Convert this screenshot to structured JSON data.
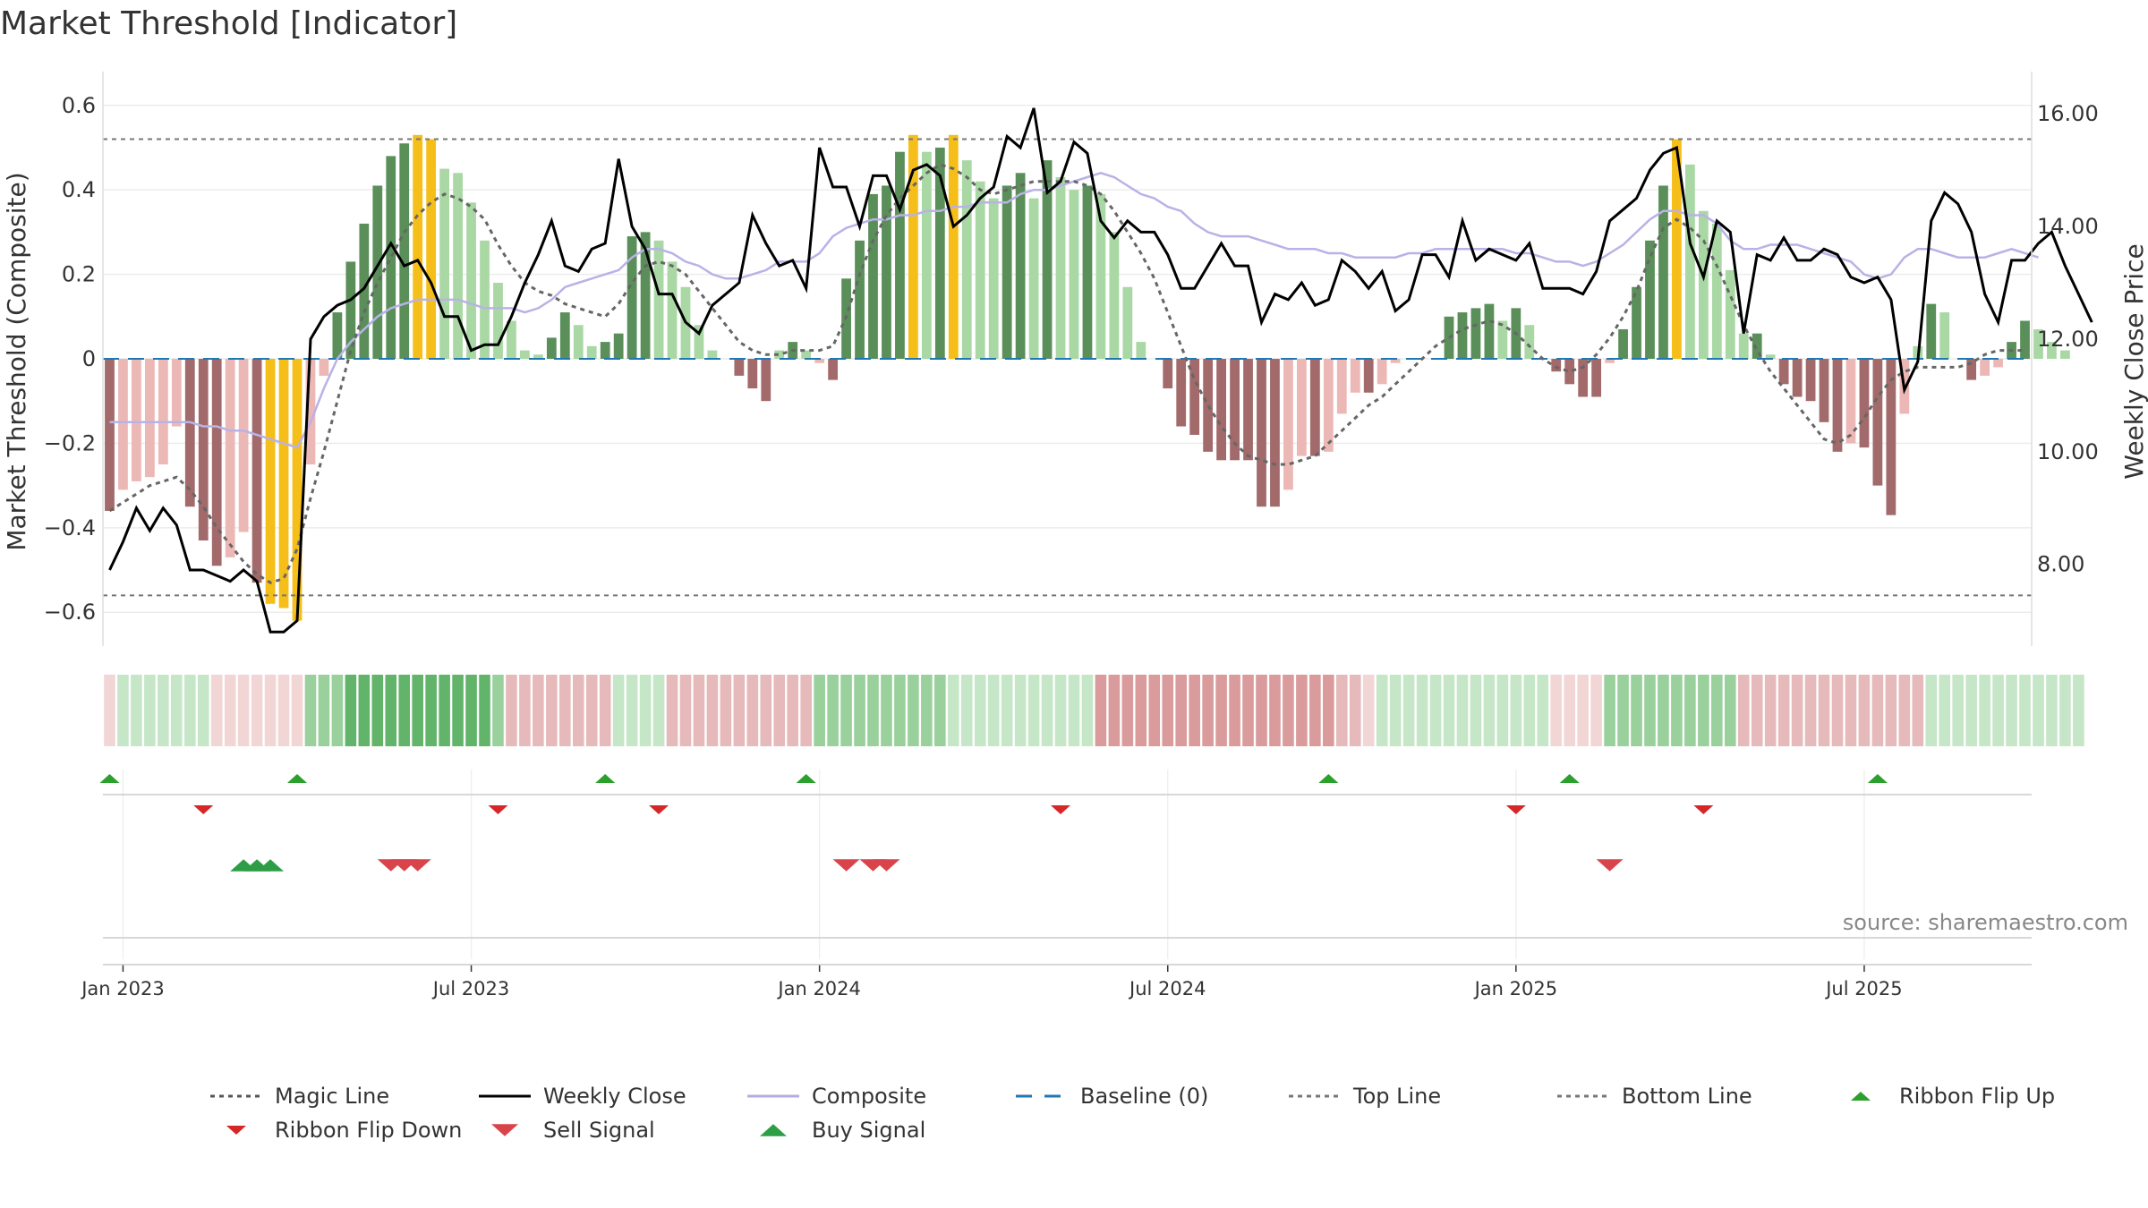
{
  "chart_data": {
    "type": "bar",
    "title": "Market Threshold [Indicator]",
    "ylabel_left": "Market Threshold (Composite)",
    "ylabel_right": "Weekly Close Price",
    "ylim_left": [
      -0.68,
      0.68
    ],
    "ylim_right": [
      6.55,
      16.75
    ],
    "yticks_left": [
      {
        "v": 0.6,
        "label": "0.6"
      },
      {
        "v": 0.4,
        "label": "0.4"
      },
      {
        "v": 0.2,
        "label": "0.2"
      },
      {
        "v": 0,
        "label": "0"
      },
      {
        "v": -0.2,
        "label": "−0.2"
      },
      {
        "v": -0.4,
        "label": "−0.4"
      },
      {
        "v": -0.6,
        "label": "−0.6"
      }
    ],
    "yticks_right": [
      {
        "v": 16,
        "label": "16.00"
      },
      {
        "v": 14,
        "label": "14.00"
      },
      {
        "v": 12,
        "label": "12.00"
      },
      {
        "v": 10,
        "label": "10.00"
      },
      {
        "v": 8,
        "label": "8.00"
      }
    ],
    "xticks": [
      {
        "week": 1,
        "label": "Jan 2023"
      },
      {
        "week": 27,
        "label": "Jul 2023"
      },
      {
        "week": 53,
        "label": "Jan 2024"
      },
      {
        "week": 79,
        "label": "Jul 2024"
      },
      {
        "week": 105,
        "label": "Jan 2025"
      },
      {
        "week": 131,
        "label": "Jul 2025"
      }
    ],
    "x_range_weeks": [
      -0.5,
      143.5
    ],
    "top_line": 0.52,
    "bottom_line": -0.56,
    "baseline": 0,
    "bars": [
      -0.36,
      -0.31,
      -0.29,
      -0.28,
      -0.25,
      -0.16,
      -0.35,
      -0.43,
      -0.49,
      -0.47,
      -0.41,
      -0.53,
      -0.58,
      -0.59,
      -0.62,
      -0.25,
      -0.04,
      0.11,
      0.23,
      0.32,
      0.41,
      0.48,
      0.51,
      0.53,
      0.52,
      0.45,
      0.44,
      0.37,
      0.28,
      0.18,
      0.09,
      0.02,
      0.01,
      0.05,
      0.11,
      0.08,
      0.03,
      0.04,
      0.06,
      0.29,
      0.3,
      0.28,
      0.23,
      0.17,
      0.08,
      0.02,
      0.0,
      -0.04,
      -0.07,
      -0.1,
      0.02,
      0.04,
      0.02,
      -0.01,
      -0.05,
      0.19,
      0.28,
      0.39,
      0.41,
      0.49,
      0.53,
      0.49,
      0.5,
      0.53,
      0.47,
      0.42,
      0.38,
      0.41,
      0.44,
      0.38,
      0.47,
      0.43,
      0.4,
      0.41,
      0.39,
      0.3,
      0.17,
      0.04,
      0.0,
      -0.07,
      -0.16,
      -0.18,
      -0.22,
      -0.24,
      -0.24,
      -0.24,
      -0.35,
      -0.35,
      -0.31,
      -0.23,
      -0.23,
      -0.22,
      -0.13,
      -0.08,
      -0.08,
      -0.06,
      -0.01,
      0.0,
      0.0,
      0.0,
      0.1,
      0.11,
      0.12,
      0.13,
      0.09,
      0.12,
      0.08,
      0.0,
      -0.03,
      -0.06,
      -0.09,
      -0.09,
      -0.01,
      0.07,
      0.17,
      0.28,
      0.41,
      0.52,
      0.46,
      0.35,
      0.32,
      0.21,
      0.06,
      0.06,
      0.01,
      -0.06,
      -0.09,
      -0.1,
      -0.15,
      -0.22,
      -0.2,
      -0.21,
      -0.3,
      -0.37,
      -0.13,
      0.03,
      0.13,
      0.11,
      0.0,
      -0.05,
      -0.04,
      -0.02,
      0.04,
      0.09,
      0.07,
      0.04,
      0.02
    ],
    "series": [
      {
        "name": "Weekly Close",
        "axis": "right",
        "values": [
          7.9,
          8.4,
          9.0,
          8.6,
          9.0,
          8.7,
          7.9,
          7.9,
          7.8,
          7.7,
          7.9,
          7.7,
          6.8,
          6.8,
          7.0,
          12.0,
          12.4,
          12.6,
          12.7,
          12.9,
          13.3,
          13.7,
          13.3,
          13.4,
          13.0,
          12.4,
          12.4,
          11.8,
          11.9,
          11.9,
          12.4,
          13.0,
          13.5,
          14.1,
          13.3,
          13.2,
          13.6,
          13.7,
          15.2,
          14.0,
          13.6,
          12.8,
          12.8,
          12.3,
          12.1,
          12.6,
          12.8,
          13.0,
          14.2,
          13.7,
          13.3,
          13.4,
          12.9,
          15.4,
          14.7,
          14.7,
          14.0,
          14.9,
          14.9,
          14.3,
          15.0,
          15.1,
          14.9,
          14.0,
          14.2,
          14.5,
          14.7,
          15.6,
          15.4,
          16.1,
          14.6,
          14.8,
          15.5,
          15.3,
          14.1,
          13.8,
          14.1,
          13.9,
          13.9,
          13.5,
          12.9,
          12.9,
          13.3,
          13.7,
          13.3,
          13.3,
          12.3,
          12.8,
          12.7,
          13.0,
          12.6,
          12.7,
          13.4,
          13.2,
          12.9,
          13.2,
          12.5,
          12.7,
          13.5,
          13.5,
          13.1,
          14.1,
          13.4,
          13.6,
          13.5,
          13.4,
          13.7,
          12.9,
          12.9,
          12.9,
          12.8,
          13.2,
          14.1,
          14.3,
          14.5,
          15.0,
          15.3,
          15.4,
          13.7,
          13.1,
          14.1,
          13.9,
          12.1,
          13.5,
          13.4,
          13.8,
          13.4,
          13.4,
          13.6,
          13.5,
          13.1,
          13.0,
          13.1,
          12.7,
          11.1,
          11.6,
          14.1,
          14.6,
          14.4,
          13.9,
          12.8,
          12.3,
          13.4,
          13.4,
          13.7,
          13.9,
          13.3,
          12.8,
          12.3
        ]
      },
      {
        "name": "Magic Line",
        "axis": "left",
        "values": [
          -0.36,
          -0.34,
          -0.32,
          -0.3,
          -0.29,
          -0.28,
          -0.31,
          -0.35,
          -0.4,
          -0.44,
          -0.48,
          -0.51,
          -0.53,
          -0.52,
          -0.45,
          -0.33,
          -0.22,
          -0.1,
          0.02,
          0.11,
          0.18,
          0.24,
          0.3,
          0.34,
          0.37,
          0.39,
          0.38,
          0.36,
          0.33,
          0.27,
          0.22,
          0.18,
          0.16,
          0.15,
          0.13,
          0.12,
          0.11,
          0.1,
          0.13,
          0.18,
          0.22,
          0.23,
          0.22,
          0.2,
          0.16,
          0.12,
          0.08,
          0.04,
          0.02,
          0.01,
          0.01,
          0.02,
          0.02,
          0.02,
          0.03,
          0.1,
          0.2,
          0.28,
          0.34,
          0.38,
          0.41,
          0.44,
          0.46,
          0.45,
          0.43,
          0.4,
          0.39,
          0.4,
          0.41,
          0.42,
          0.42,
          0.42,
          0.42,
          0.41,
          0.39,
          0.35,
          0.3,
          0.25,
          0.19,
          0.11,
          0.03,
          -0.05,
          -0.11,
          -0.16,
          -0.2,
          -0.23,
          -0.24,
          -0.25,
          -0.25,
          -0.24,
          -0.23,
          -0.2,
          -0.17,
          -0.14,
          -0.11,
          -0.09,
          -0.06,
          -0.03,
          0.0,
          0.03,
          0.05,
          0.07,
          0.08,
          0.09,
          0.08,
          0.06,
          0.03,
          0.0,
          -0.02,
          -0.03,
          -0.02,
          0.01,
          0.05,
          0.1,
          0.16,
          0.24,
          0.31,
          0.33,
          0.31,
          0.28,
          0.22,
          0.15,
          0.08,
          0.02,
          -0.03,
          -0.07,
          -0.11,
          -0.15,
          -0.19,
          -0.2,
          -0.18,
          -0.14,
          -0.09,
          -0.05,
          -0.03,
          -0.02,
          -0.02,
          -0.02,
          -0.02,
          -0.01,
          0.01,
          0.02,
          0.02,
          0.02
        ]
      },
      {
        "name": "Composite",
        "axis": "left",
        "values": [
          -0.15,
          -0.15,
          -0.15,
          -0.15,
          -0.15,
          -0.15,
          -0.15,
          -0.16,
          -0.16,
          -0.17,
          -0.17,
          -0.18,
          -0.19,
          -0.2,
          -0.21,
          -0.15,
          -0.07,
          0.0,
          0.04,
          0.07,
          0.1,
          0.12,
          0.13,
          0.14,
          0.14,
          0.14,
          0.14,
          0.13,
          0.12,
          0.12,
          0.12,
          0.11,
          0.12,
          0.14,
          0.17,
          0.18,
          0.19,
          0.2,
          0.21,
          0.24,
          0.26,
          0.26,
          0.25,
          0.23,
          0.22,
          0.2,
          0.19,
          0.19,
          0.2,
          0.21,
          0.23,
          0.23,
          0.23,
          0.25,
          0.29,
          0.31,
          0.32,
          0.33,
          0.33,
          0.34,
          0.34,
          0.35,
          0.35,
          0.36,
          0.36,
          0.37,
          0.37,
          0.37,
          0.39,
          0.4,
          0.4,
          0.41,
          0.42,
          0.43,
          0.44,
          0.43,
          0.41,
          0.39,
          0.38,
          0.36,
          0.35,
          0.32,
          0.3,
          0.29,
          0.29,
          0.29,
          0.28,
          0.27,
          0.26,
          0.26,
          0.26,
          0.25,
          0.25,
          0.24,
          0.24,
          0.24,
          0.24,
          0.25,
          0.25,
          0.26,
          0.26,
          0.26,
          0.26,
          0.26,
          0.26,
          0.25,
          0.25,
          0.24,
          0.23,
          0.23,
          0.22,
          0.23,
          0.25,
          0.27,
          0.3,
          0.33,
          0.35,
          0.35,
          0.34,
          0.34,
          0.32,
          0.28,
          0.26,
          0.26,
          0.27,
          0.27,
          0.27,
          0.26,
          0.25,
          0.24,
          0.23,
          0.2,
          0.19,
          0.2,
          0.24,
          0.26,
          0.26,
          0.25,
          0.24,
          0.24,
          0.24,
          0.25,
          0.26,
          0.25,
          0.24
        ]
      }
    ],
    "ribbon": [
      -1,
      1,
      1,
      1,
      1,
      1,
      1,
      1,
      -1,
      -1,
      -1,
      -1,
      -1,
      -1,
      -1,
      2,
      2,
      2,
      3,
      3,
      3,
      3,
      3,
      3,
      3,
      3,
      3,
      3,
      3,
      2,
      -2,
      -2,
      -2,
      -2,
      -2,
      -2,
      -2,
      -2,
      1,
      1,
      1,
      1,
      -2,
      -2,
      -2,
      -2,
      -2,
      -2,
      -2,
      -2,
      -2,
      -2,
      -2,
      2,
      2,
      2,
      2,
      2,
      2,
      2,
      2,
      2,
      2,
      1,
      1,
      1,
      1,
      1,
      1,
      1,
      1,
      1,
      1,
      1,
      -3,
      -3,
      -3,
      -3,
      -3,
      -3,
      -3,
      -3,
      -3,
      -3,
      -3,
      -3,
      -3,
      -3,
      -3,
      -3,
      -3,
      -3,
      -2,
      -2,
      -1,
      1,
      1,
      1,
      1,
      1,
      1,
      1,
      1,
      1,
      1,
      1,
      1,
      1,
      -1,
      -1,
      -1,
      -1,
      2,
      2,
      2,
      2,
      2,
      2,
      2,
      2,
      2,
      2,
      -2,
      -2,
      -2,
      -2,
      -2,
      -2,
      -2,
      -2,
      -2,
      -2,
      -2,
      -2,
      -2,
      -2,
      1,
      1,
      1,
      1,
      1,
      1,
      1,
      1,
      1,
      1,
      1,
      1
    ],
    "ribbon_flip_up_weeks": [
      0,
      14,
      37,
      52,
      91,
      109,
      132
    ],
    "ribbon_flip_down_weeks": [
      7,
      29,
      41,
      71,
      105,
      119
    ],
    "buy_signal_weeks": [
      10,
      11,
      12
    ],
    "sell_signal_weeks": [
      21,
      22,
      23,
      55,
      57,
      58,
      112
    ],
    "source_text": "source: sharemaestro.com",
    "legend": [
      {
        "label": "Magic Line",
        "style": "dotted",
        "color": "#555555"
      },
      {
        "label": "Weekly Close",
        "style": "solid",
        "color": "#000000"
      },
      {
        "label": "Composite",
        "style": "solid",
        "color": "#b3aee0"
      },
      {
        "label": "Baseline (0)",
        "style": "dashed",
        "color": "#1f77b4"
      },
      {
        "label": "Top Line",
        "style": "dotted",
        "color": "#777777"
      },
      {
        "label": "Bottom Line",
        "style": "dotted",
        "color": "#777777"
      },
      {
        "label": "Ribbon Flip Up",
        "style": "tri-up",
        "color": "#2ca02c"
      },
      {
        "label": "Ribbon Flip Down",
        "style": "tri-down",
        "color": "#d62728"
      },
      {
        "label": "Sell Signal",
        "style": "tri-down-big",
        "color": "#d9444b"
      },
      {
        "label": "Buy Signal",
        "style": "tri-up-big",
        "color": "#2e9e46"
      }
    ],
    "colors": {
      "pos_strong": "#5a8f5a",
      "pos_light": "#a9d8a4",
      "neg_strong": "#a26a6a",
      "neg_light": "#ecb8b6",
      "gold": "#f6be19",
      "ribbon_pos": [
        "#c6e6c8",
        "#99d09c",
        "#62b46a",
        "#3d9f4b"
      ],
      "ribbon_neg": [
        "#f2d6d6",
        "#e6baba",
        "#d99b9b"
      ]
    }
  }
}
